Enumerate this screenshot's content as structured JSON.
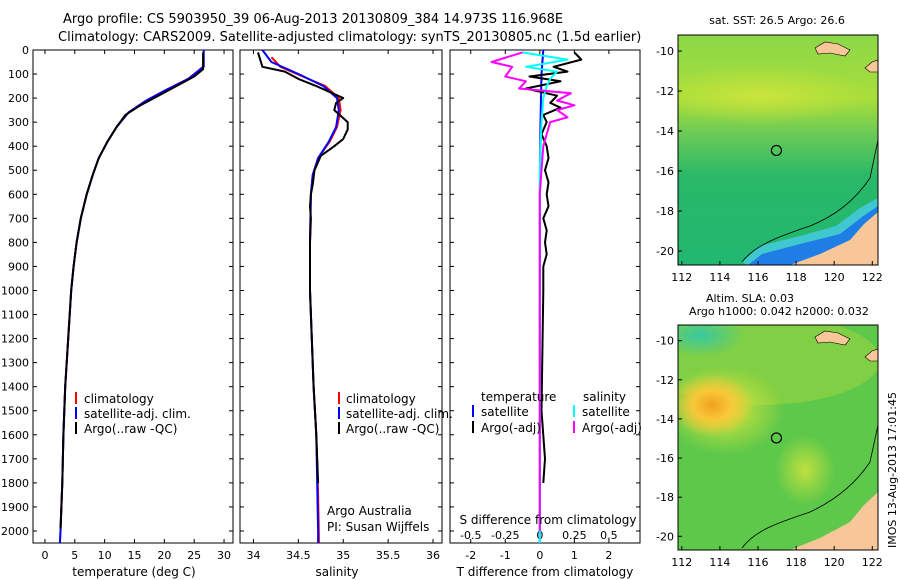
{
  "header": {
    "line1": "Argo profile: CS 5903950_39 06-Aug-2013 20130809_384 14.973S 116.968E",
    "line2": "Climatology: CARS2009. Satellite-adjusted climatology: synTS_20130805.nc (1.5d earlier)"
  },
  "colors": {
    "climatology": "#ff0000",
    "satellite": "#0000ff",
    "argo": "#000000",
    "sal_satellite": "#00ffff",
    "sal_argo": "#ff00ff",
    "land": "#f7c79a"
  },
  "depth_axis": {
    "range": [
      0,
      2050
    ],
    "ticks": [
      0,
      100,
      200,
      300,
      400,
      500,
      600,
      700,
      800,
      900,
      1000,
      1100,
      1200,
      1300,
      1400,
      1500,
      1600,
      1700,
      1800,
      1900,
      2000
    ]
  },
  "chart_data": [
    {
      "id": "temperature",
      "type": "line",
      "xlabel": "temperature (deg C)",
      "xlim": [
        -2,
        31.5
      ],
      "xticks": [
        0,
        5,
        10,
        15,
        20,
        25,
        30
      ],
      "ylim": [
        2050,
        0
      ],
      "series": [
        {
          "name": "climatology",
          "color_key": "climatology",
          "points": [
            [
              26.5,
              30
            ],
            [
              26.5,
              70
            ],
            [
              24,
              120
            ],
            [
              20,
              170
            ],
            [
              17,
              210
            ],
            [
              14,
              260
            ],
            [
              12,
              320
            ],
            [
              10.5,
              380
            ],
            [
              9,
              450
            ],
            [
              8,
              520
            ],
            [
              7,
              600
            ],
            [
              6,
              700
            ],
            [
              5.3,
              800
            ],
            [
              4.8,
              900
            ],
            [
              4.4,
              1000
            ],
            [
              3.9,
              1200
            ],
            [
              3.4,
              1400
            ],
            [
              3.1,
              1600
            ],
            [
              2.9,
              1800
            ],
            [
              2.6,
              2000
            ],
            [
              2.5,
              2050
            ]
          ]
        },
        {
          "name": "satellite-adj. clim.",
          "color_key": "satellite",
          "points": [
            [
              26.6,
              0
            ],
            [
              26.6,
              70
            ],
            [
              24,
              120
            ],
            [
              20,
              170
            ],
            [
              17,
              210
            ],
            [
              14,
              260
            ],
            [
              12,
              320
            ],
            [
              10.5,
              380
            ],
            [
              9,
              450
            ],
            [
              8,
              520
            ],
            [
              7,
              600
            ],
            [
              6,
              700
            ],
            [
              5.3,
              800
            ],
            [
              4.8,
              900
            ],
            [
              4.4,
              1000
            ],
            [
              3.9,
              1200
            ],
            [
              3.4,
              1400
            ],
            [
              3.1,
              1600
            ],
            [
              2.9,
              1800
            ],
            [
              2.6,
              2000
            ],
            [
              2.5,
              2050
            ]
          ]
        },
        {
          "name": "Argo(..raw -QC)",
          "color_key": "argo",
          "points": [
            [
              26.5,
              10
            ],
            [
              26.5,
              80
            ],
            [
              25,
              110
            ],
            [
              22,
              150
            ],
            [
              19,
              190
            ],
            [
              16,
              230
            ],
            [
              13.5,
              270
            ],
            [
              12,
              320
            ],
            [
              10.5,
              380
            ],
            [
              9,
              450
            ],
            [
              8,
              520
            ],
            [
              7,
              600
            ],
            [
              6,
              700
            ],
            [
              5.3,
              800
            ],
            [
              4.8,
              900
            ],
            [
              4.4,
              1000
            ],
            [
              3.9,
              1200
            ],
            [
              3.4,
              1400
            ],
            [
              3.1,
              1600
            ],
            [
              2.9,
              1800
            ],
            [
              2.6,
              1990
            ]
          ]
        }
      ],
      "legend": {
        "position": "bottom-center",
        "entries": [
          "climatology",
          "satellite-adj. clim.",
          "Argo(..raw -QC)"
        ]
      }
    },
    {
      "id": "salinity",
      "type": "line",
      "xlabel": "salinity",
      "xlim": [
        33.85,
        36.1
      ],
      "xticks": [
        34,
        34.5,
        35,
        35.5,
        36
      ],
      "tick_labels": [
        "34",
        "34.5",
        "35",
        "35.5",
        "36"
      ],
      "ylim": [
        2050,
        0
      ],
      "series": [
        {
          "name": "climatology",
          "color_key": "climatology",
          "points": [
            [
              34.2,
              30
            ],
            [
              34.3,
              70
            ],
            [
              34.55,
              110
            ],
            [
              34.8,
              150
            ],
            [
              34.95,
              200
            ],
            [
              34.97,
              250
            ],
            [
              34.93,
              320
            ],
            [
              34.85,
              380
            ],
            [
              34.72,
              450
            ],
            [
              34.66,
              520
            ],
            [
              34.64,
              600
            ],
            [
              34.63,
              800
            ],
            [
              34.63,
              1000
            ],
            [
              34.65,
              1200
            ],
            [
              34.67,
              1400
            ],
            [
              34.7,
              1600
            ],
            [
              34.72,
              1850
            ],
            [
              34.73,
              2050
            ]
          ]
        },
        {
          "name": "satellite-adj. clim.",
          "color_key": "satellite",
          "points": [
            [
              34.1,
              0
            ],
            [
              34.2,
              50
            ],
            [
              34.5,
              100
            ],
            [
              34.78,
              150
            ],
            [
              34.93,
              200
            ],
            [
              34.95,
              250
            ],
            [
              34.92,
              320
            ],
            [
              34.84,
              380
            ],
            [
              34.72,
              450
            ],
            [
              34.66,
              520
            ],
            [
              34.64,
              600
            ],
            [
              34.63,
              800
            ],
            [
              34.63,
              1000
            ],
            [
              34.65,
              1200
            ],
            [
              34.67,
              1400
            ],
            [
              34.7,
              1600
            ],
            [
              34.71,
              1800
            ],
            [
              34.72,
              2000
            ],
            [
              34.72,
              2050
            ]
          ]
        },
        {
          "name": "Argo(..raw -QC)",
          "color_key": "argo",
          "points": [
            [
              34.05,
              10
            ],
            [
              34.1,
              70
            ],
            [
              34.35,
              90
            ],
            [
              34.5,
              120
            ],
            [
              34.7,
              150
            ],
            [
              34.85,
              175
            ],
            [
              35.0,
              200
            ],
            [
              34.92,
              220
            ],
            [
              34.9,
              250
            ],
            [
              35.05,
              300
            ],
            [
              35.05,
              330
            ],
            [
              35.0,
              370
            ],
            [
              34.9,
              400
            ],
            [
              34.75,
              440
            ],
            [
              34.68,
              500
            ],
            [
              34.66,
              560
            ],
            [
              34.64,
              600
            ],
            [
              34.63,
              650
            ],
            [
              34.64,
              700
            ],
            [
              34.63,
              800
            ],
            [
              34.63,
              1000
            ],
            [
              34.65,
              1200
            ],
            [
              34.67,
              1400
            ],
            [
              34.7,
              1600
            ],
            [
              34.72,
              1800
            ]
          ]
        }
      ],
      "legend": {
        "position": "bottom-right",
        "entries": [
          "climatology",
          "satellite-adj. clim.",
          "Argo(..raw -QC)"
        ]
      }
    },
    {
      "id": "differences",
      "type": "line",
      "xlabel": "T difference from climatology",
      "xlabel_top": "S difference from climatology",
      "xlim": [
        -2.6,
        2.9
      ],
      "xticks": [
        -2,
        -1,
        0,
        1,
        2
      ],
      "s_tick_labels": [
        "-0.5",
        "-0.25",
        "0",
        "0.25",
        "0.5"
      ],
      "s_tick_xt": [
        -2,
        -1,
        0,
        1,
        2
      ],
      "ylim": [
        2050,
        0
      ],
      "series": [
        {
          "name": "temperature satellite",
          "color_key": "satellite",
          "points": [
            [
              0.1,
              0
            ],
            [
              0.05,
              100
            ],
            [
              0.02,
              300
            ],
            [
              0,
              600
            ],
            [
              0,
              2050
            ]
          ]
        },
        {
          "name": "temperature Argo(-adj)",
          "color_key": "argo",
          "points": [
            [
              1.0,
              10
            ],
            [
              1.2,
              40
            ],
            [
              0.4,
              70
            ],
            [
              0.8,
              90
            ],
            [
              -0.3,
              110
            ],
            [
              0.6,
              130
            ],
            [
              -0.4,
              160
            ],
            [
              0.5,
              190
            ],
            [
              0.3,
              220
            ],
            [
              0.6,
              240
            ],
            [
              0.1,
              270
            ],
            [
              0.2,
              300
            ],
            [
              0.05,
              350
            ],
            [
              0.2,
              400
            ],
            [
              0.25,
              450
            ],
            [
              0.15,
              500
            ],
            [
              0.25,
              550
            ],
            [
              0.2,
              600
            ],
            [
              0.25,
              650
            ],
            [
              0.1,
              700
            ],
            [
              0.2,
              750
            ],
            [
              0.15,
              800
            ],
            [
              0.2,
              850
            ],
            [
              0.1,
              900
            ],
            [
              0.1,
              1000
            ],
            [
              0.05,
              1500
            ],
            [
              0.15,
              1700
            ],
            [
              0.1,
              1800
            ]
          ]
        },
        {
          "name": "salinity satellite",
          "color_key": "sal_satellite",
          "points": [
            [
              -0.5,
              10
            ],
            [
              0.8,
              40
            ],
            [
              -0.4,
              70
            ],
            [
              0.5,
              90
            ],
            [
              0.3,
              120
            ],
            [
              0.2,
              150
            ],
            [
              0.1,
              200
            ],
            [
              0.05,
              300
            ],
            [
              0,
              500
            ],
            [
              0,
              2050
            ]
          ]
        },
        {
          "name": "salinity Argo(-adj)",
          "color_key": "sal_argo",
          "points": [
            [
              -0.5,
              10
            ],
            [
              -1.4,
              50
            ],
            [
              -0.8,
              70
            ],
            [
              -1.0,
              110
            ],
            [
              -0.4,
              130
            ],
            [
              -0.6,
              160
            ],
            [
              0.9,
              180
            ],
            [
              0.5,
              210
            ],
            [
              1.0,
              230
            ],
            [
              0.5,
              250
            ],
            [
              0.8,
              280
            ],
            [
              0.3,
              300
            ],
            [
              0.2,
              350
            ],
            [
              0.1,
              400
            ],
            [
              0.05,
              500
            ],
            [
              0,
              600
            ],
            [
              0,
              2000
            ]
          ]
        }
      ],
      "legend": {
        "temperature_header": "temperature",
        "salinity_header": "salinity",
        "temperature_entries": [
          "satellite",
          "Argo(-adj)"
        ],
        "salinity_entries": [
          "satellite",
          "Argo(-adj)"
        ]
      }
    }
  ],
  "maps": {
    "xticks": [
      112,
      114,
      116,
      118,
      120,
      122
    ],
    "yticks": [
      -10,
      -12,
      -14,
      -16,
      -18,
      -20
    ],
    "lon_range": [
      111.8,
      122.3
    ],
    "lat_range": [
      -9.2,
      -20.7
    ],
    "profile_location": {
      "lon": 116.968,
      "lat": -14.973
    },
    "sst": {
      "title": "sat. SST: 26.5 Argo: 26.6"
    },
    "sla": {
      "title1": "Altim. SLA: 0.03",
      "title2": "Argo h1000: 0.042 h2000: 0.032"
    }
  },
  "annotations": {
    "argo_line1": "Argo Australia",
    "argo_line2": "PI: Susan Wijffels",
    "imos_stamp": "IMOS 13-Aug-2013 17:01:45"
  }
}
